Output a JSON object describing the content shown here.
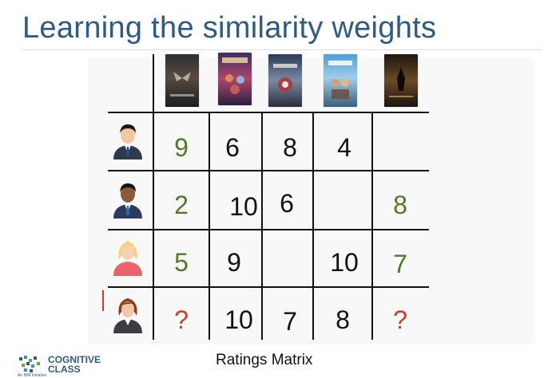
{
  "title": "Learning the similarity weights",
  "caption": "Ratings Matrix",
  "logo": {
    "line1": "COGNITIVE",
    "line2": "CLASS",
    "tagline": "An IBM Initiative"
  },
  "movies": [
    {
      "icon": "batman-v-superman-poster"
    },
    {
      "icon": "guardians-of-the-galaxy-poster"
    },
    {
      "icon": "captain-america-civil-war-poster"
    },
    {
      "icon": "hitchhikers-guide-poster"
    },
    {
      "icon": "dark-knight-poster"
    }
  ],
  "users": [
    {
      "icon": "man-dark-hair-avatar",
      "ratings": [
        {
          "value": "9",
          "color": "green"
        },
        {
          "value": "6",
          "color": "black"
        },
        {
          "value": "8",
          "color": "black"
        },
        {
          "value": "4",
          "color": "black"
        },
        {
          "value": "",
          "color": "black"
        }
      ]
    },
    {
      "icon": "man-dark-skin-avatar",
      "ratings": [
        {
          "value": "2",
          "color": "green"
        },
        {
          "value": "10",
          "color": "black"
        },
        {
          "value": "6",
          "color": "black"
        },
        {
          "value": "",
          "color": "black"
        },
        {
          "value": "8",
          "color": "green"
        }
      ]
    },
    {
      "icon": "woman-blonde-avatar",
      "ratings": [
        {
          "value": "5",
          "color": "green"
        },
        {
          "value": "9",
          "color": "black"
        },
        {
          "value": "",
          "color": "black"
        },
        {
          "value": "10",
          "color": "black"
        },
        {
          "value": "7",
          "color": "green"
        }
      ]
    },
    {
      "icon": "woman-redhair-avatar",
      "ratings": [
        {
          "value": "?",
          "color": "red"
        },
        {
          "value": "10",
          "color": "black"
        },
        {
          "value": "7",
          "color": "black"
        },
        {
          "value": "8",
          "color": "black"
        },
        {
          "value": "?",
          "color": "red"
        }
      ]
    }
  ],
  "colors": {
    "title": "#2e5b84",
    "green": "#4f7a2a",
    "red": "#d43a1f"
  }
}
